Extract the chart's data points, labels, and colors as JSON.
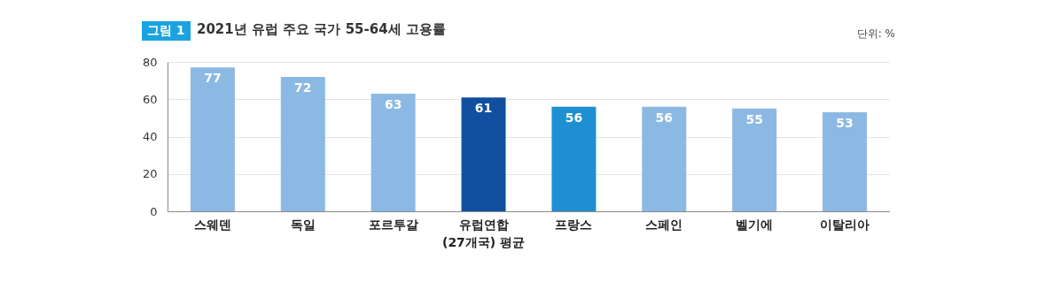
{
  "chart_data": {
    "type": "bar",
    "title": "2021년 유럽 주요 국가 55-64세 고용률",
    "annotations": [
      "그림 1",
      "단위: %"
    ],
    "categories": [
      "스웨덴",
      "독일",
      "포르투갈",
      "유럽연합\n(27개국) 평균",
      "프랑스",
      "스페인",
      "벨기에",
      "이탈리아"
    ],
    "values": [
      77,
      72,
      63,
      61,
      56,
      56,
      55,
      53
    ],
    "colors": [
      "#8cb9e3",
      "#8cb9e3",
      "#8cb9e3",
      "#1150a0",
      "#1e90d2",
      "#8cb9e3",
      "#8cb9e3",
      "#8cb9e3"
    ],
    "ylim": [
      0,
      80
    ],
    "yticks": [
      0,
      20,
      40,
      60,
      80
    ],
    "grid": "y",
    "data_labels": true
  }
}
